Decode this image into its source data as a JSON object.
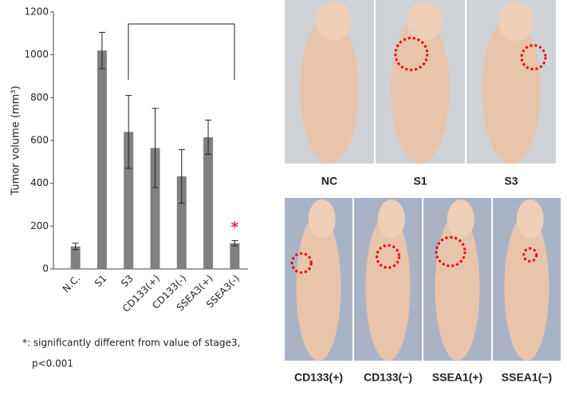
{
  "chart_data": {
    "type": "bar",
    "ylabel": "Tumor volume (mm³)",
    "categories": [
      "N.C.",
      "S1",
      "S3",
      "CD133(+)",
      "CD133(-)",
      "SSEA3(+)",
      "SSEA3(-)"
    ],
    "values": [
      105,
      1020,
      640,
      565,
      432,
      615,
      120
    ],
    "errors": [
      15,
      85,
      170,
      185,
      125,
      80,
      12
    ],
    "color": "#808080",
    "ylim": [
      0,
      1200
    ],
    "yticks": [
      0,
      200,
      400,
      600,
      800,
      1000,
      1200
    ],
    "annotations": [
      {
        "text": "*",
        "category": "SSEA3(-)",
        "color": "#d0207a"
      }
    ],
    "footnote": [
      "*: significantly different from value of stage3,",
      "p<0.001"
    ]
  },
  "photos": {
    "top_labels": [
      "NC",
      "S1",
      "S3"
    ],
    "bottom_labels": [
      "CD133(+)",
      "CD133(−)",
      "SSEA1(+)",
      "SSEA1(−)"
    ]
  }
}
